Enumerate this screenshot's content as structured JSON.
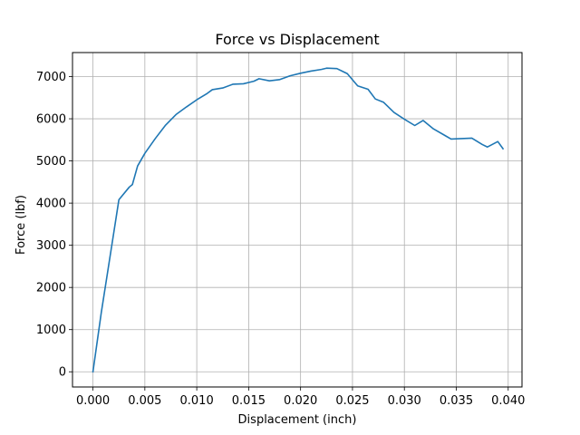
{
  "chart_data": {
    "type": "line",
    "title": "Force vs Displacement",
    "xlabel": "Displacement (inch)",
    "ylabel": "Force (lbf)",
    "xlim": [
      -0.00197,
      0.04133
    ],
    "ylim": [
      -360,
      7570
    ],
    "grid": true,
    "xticks": [
      0.0,
      0.005,
      0.01,
      0.015,
      0.02,
      0.025,
      0.03,
      0.035,
      0.04
    ],
    "xtick_labels": [
      "0.000",
      "0.005",
      "0.010",
      "0.015",
      "0.020",
      "0.025",
      "0.030",
      "0.035",
      "0.040"
    ],
    "yticks": [
      0,
      1000,
      2000,
      3000,
      4000,
      5000,
      6000,
      7000
    ],
    "ytick_labels": [
      "0",
      "1000",
      "2000",
      "3000",
      "4000",
      "5000",
      "6000",
      "7000"
    ],
    "series": [
      {
        "name": "Force",
        "color": "#1f77b4",
        "x": [
          0.0,
          0.0008,
          0.0015,
          0.0025,
          0.0035,
          0.0038,
          0.0043,
          0.005,
          0.006,
          0.007,
          0.008,
          0.009,
          0.01,
          0.011,
          0.0115,
          0.0125,
          0.0135,
          0.0145,
          0.0155,
          0.016,
          0.017,
          0.018,
          0.019,
          0.02,
          0.021,
          0.022,
          0.0225,
          0.0235,
          0.0245,
          0.0255,
          0.0265,
          0.0272,
          0.028,
          0.029,
          0.03,
          0.031,
          0.0318,
          0.0328,
          0.034,
          0.0345,
          0.0355,
          0.0365,
          0.0375,
          0.038,
          0.039,
          0.0395
        ],
        "y": [
          0,
          1400,
          2500,
          4080,
          4380,
          4440,
          4880,
          5180,
          5530,
          5850,
          6100,
          6280,
          6450,
          6600,
          6690,
          6730,
          6820,
          6830,
          6890,
          6950,
          6900,
          6930,
          7020,
          7080,
          7130,
          7170,
          7200,
          7190,
          7070,
          6780,
          6700,
          6470,
          6390,
          6150,
          5990,
          5840,
          5960,
          5760,
          5590,
          5520,
          5530,
          5540,
          5390,
          5330,
          5460,
          5290
        ]
      }
    ]
  }
}
